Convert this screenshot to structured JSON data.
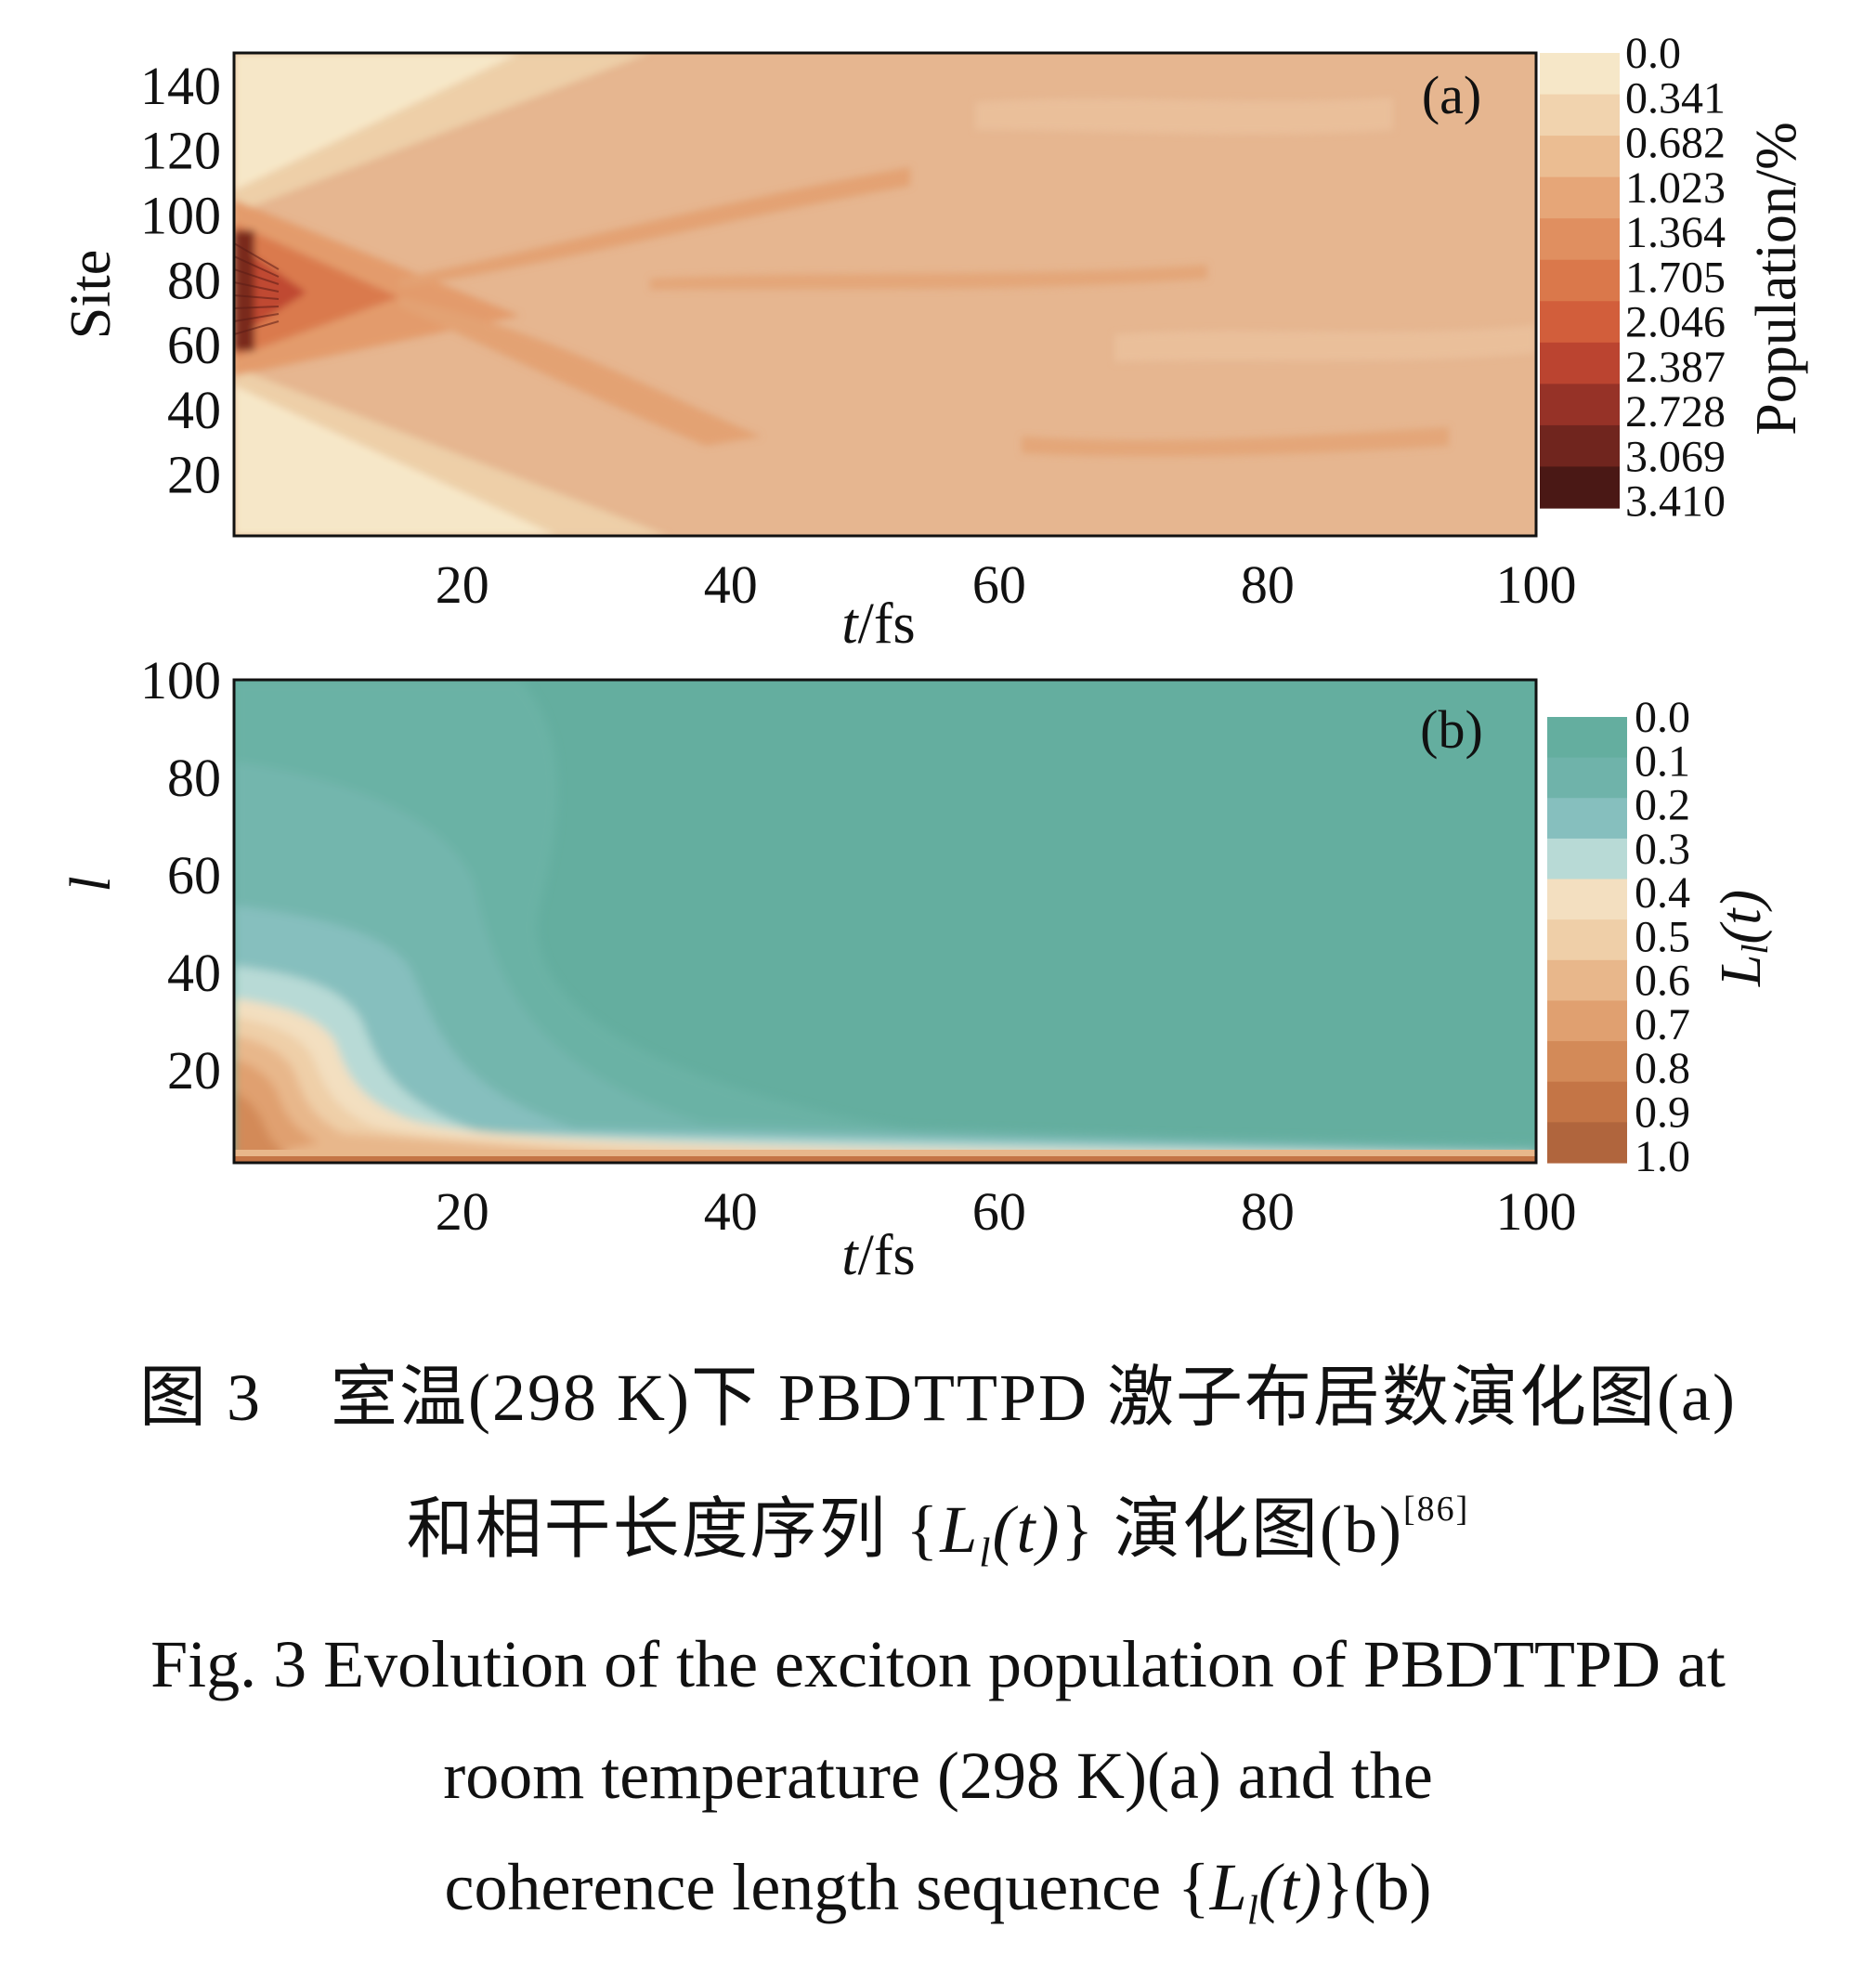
{
  "chart_data": [
    {
      "type": "heatmap",
      "panel_label": "(a)",
      "xlabel": "t/fs",
      "ylabel": "Site",
      "xlim": [
        3,
        100
      ],
      "ylim": [
        1,
        150
      ],
      "xticks": [
        "20",
        "40",
        "60",
        "80",
        "100"
      ],
      "yticks": [
        "20",
        "40",
        "60",
        "80",
        "100",
        "120",
        "140"
      ],
      "colorbar_label": "Population/%",
      "colorbar_levels": [
        "0.0",
        "0.341",
        "0.682",
        "1.023",
        "1.364",
        "1.705",
        "2.046",
        "2.387",
        "2.728",
        "3.069",
        "3.410"
      ],
      "colorbar_colors": [
        "#f6e7c8",
        "#f1d3ae",
        "#ebbd92",
        "#e6a678",
        "#e08f60",
        "#da784b",
        "#d25e3b",
        "#bb4430",
        "#963227",
        "#70251e",
        "#4a1815"
      ],
      "features": {
        "initial_center_site": 75,
        "initial_max_population": 3.41,
        "spread_front_reaches_edges_at_t": 33,
        "late_time_population": 0.682
      }
    },
    {
      "type": "heatmap",
      "panel_label": "(b)",
      "xlabel": "t/fs",
      "ylabel": "l",
      "xlim": [
        3,
        100
      ],
      "ylim": [
        1,
        100
      ],
      "xticks": [
        "20",
        "40",
        "60",
        "80",
        "100"
      ],
      "yticks": [
        "20",
        "40",
        "60",
        "80",
        "100"
      ],
      "colorbar_label": "L_l(t)",
      "colorbar_levels": [
        "0.0",
        "0.1",
        "0.2",
        "0.3",
        "0.4",
        "0.5",
        "0.6",
        "0.7",
        "0.8",
        "0.9",
        "1.0"
      ],
      "colorbar_colors": [
        "#64ae9f",
        "#6fb3aa",
        "#86bfbe",
        "#b8dad6",
        "#f3dfc0",
        "#efcfa8",
        "#e8b78b",
        "#e0a070",
        "#d38a58",
        "#c47546",
        "#b0653d"
      ],
      "features": {
        "initial_high_coherence_l_max": 35,
        "decay_time_t": 20,
        "late_time_coherence": 0.0
      }
    }
  ],
  "caption": {
    "zh_line1_a": "图 3　室温(298 K)下 PBDTTPD 激子布居数演化图(a)",
    "zh_line2_pre": "和相干长度序列 {",
    "zh_line2_L": "L",
    "zh_line2_l": "l",
    "zh_line2_t": "(t)",
    "zh_line2_post": "} 演化图(b)",
    "zh_ref": "[86]",
    "en_line1": "Fig. 3  Evolution of the exciton population of PBDTTPD at",
    "en_line2": "room temperature (298 K)(a) and the",
    "en_line3_pre": "coherence length sequence {",
    "en_line3_L": "L",
    "en_line3_l": "l",
    "en_line3_t": "(t)",
    "en_line3_post": "}(b)"
  },
  "colors": {
    "panel_a_background": "#e6b690",
    "panel_b_background": "#64ae9f",
    "axis_color": "#111111"
  }
}
